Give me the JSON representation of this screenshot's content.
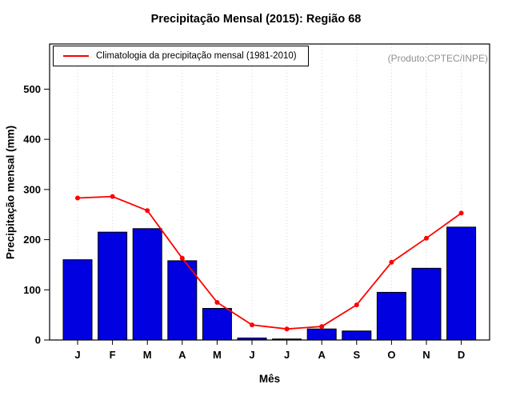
{
  "title": "Precipitação Mensal (2015): Região 68",
  "legend": {
    "label": "Climatologia da precipitação mensal (1981-2010)"
  },
  "watermark": "(Produto:CPTEC/INPE)",
  "chart_data": {
    "type": "bar",
    "title": "Precipitação Mensal (2015): Região 68",
    "xlabel": "Mês",
    "ylabel": "Precipitação mensal (mm)",
    "categories": [
      "J",
      "F",
      "M",
      "A",
      "M",
      "J",
      "J",
      "A",
      "S",
      "O",
      "N",
      "D"
    ],
    "series": [
      {
        "name": "Precipitação mensal 2015",
        "type": "bar",
        "color": "#0000e0",
        "values": [
          160,
          215,
          222,
          158,
          63,
          4,
          2,
          22,
          18,
          95,
          143,
          225
        ]
      },
      {
        "name": "Climatologia da precipitação mensal (1981-2010)",
        "type": "line",
        "color": "#ff0000",
        "values": [
          283,
          286,
          258,
          163,
          75,
          30,
          22,
          27,
          70,
          155,
          203,
          253
        ]
      }
    ],
    "ylim": [
      0,
      590
    ],
    "yticks": [
      0,
      100,
      200,
      300,
      400,
      500
    ],
    "grid": "vertical-dotted",
    "grid_color": "#d8d8d8",
    "legend_position": "top-left"
  }
}
